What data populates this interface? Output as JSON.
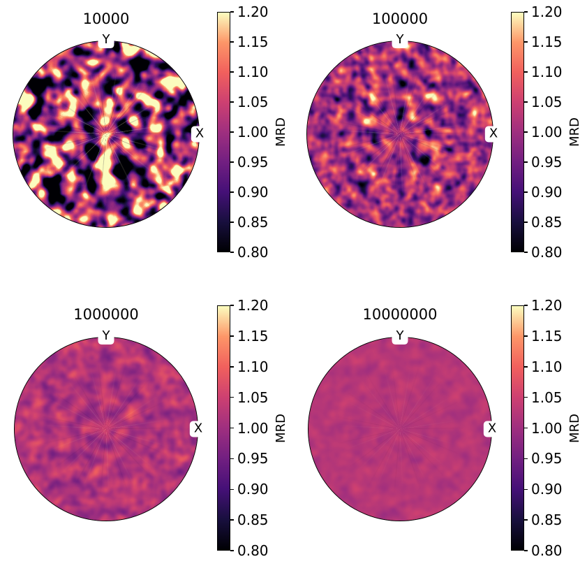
{
  "figure": {
    "background": "#ffffff",
    "colormap": "magma",
    "axis_labels": {
      "top": "Y",
      "right": "X"
    },
    "colorbar": {
      "label": "MRD",
      "vmin": "0.80",
      "vmax": "1.20",
      "ticks": [
        "1.20",
        "1.15",
        "1.10",
        "1.05",
        "1.00",
        "0.95",
        "0.90",
        "0.85",
        "0.80"
      ],
      "gradient_stops": [
        "#000004",
        "#180f3e",
        "#451077",
        "#721f81",
        "#9f2f7f",
        "#cd4071",
        "#f1605d",
        "#fd9668",
        "#fcfdbf"
      ]
    }
  },
  "subplots": [
    {
      "title": "10000"
    },
    {
      "title": "100000"
    },
    {
      "title": "1000000"
    },
    {
      "title": "10000000"
    }
  ],
  "chart_data": [
    {
      "type": "heatmap",
      "subtype": "pole-figure",
      "projection": "polar",
      "title": "10000",
      "n_orientations": 10000,
      "value_label": "MRD",
      "value_range": [
        0.8,
        1.2
      ],
      "colormap": "magma",
      "colorbar_ticks": [
        1.2,
        1.15,
        1.1,
        1.05,
        1.0,
        0.95,
        0.9,
        0.85,
        0.8
      ],
      "axis_labels": {
        "top": "Y",
        "right": "X"
      },
      "observed_mrd_range_approx": [
        0.8,
        1.2
      ],
      "appearance": "high-contrast speckled intensity field; many patches saturate at both colour-scale limits (black <=0.80 and cream >=1.20); thin radial spokes emanate from the centre"
    },
    {
      "type": "heatmap",
      "subtype": "pole-figure",
      "projection": "polar",
      "title": "100000",
      "n_orientations": 100000,
      "value_label": "MRD",
      "value_range": [
        0.8,
        1.2
      ],
      "colormap": "magma",
      "colorbar_ticks": [
        1.2,
        1.15,
        1.1,
        1.05,
        1.0,
        0.95,
        0.9,
        0.85,
        0.8
      ],
      "axis_labels": {
        "top": "Y",
        "right": "X"
      },
      "observed_mrd_range_approx": [
        0.85,
        1.17
      ],
      "appearance": "moderate mottled texture around MRD ~1 with scattered bright (orange/cream) and dark (navy) patches; faint radial spokes at centre"
    },
    {
      "type": "heatmap",
      "subtype": "pole-figure",
      "projection": "polar",
      "title": "1000000",
      "n_orientations": 1000000,
      "value_label": "MRD",
      "value_range": [
        0.8,
        1.2
      ],
      "colormap": "magma",
      "colorbar_ticks": [
        1.2,
        1.15,
        1.1,
        1.05,
        1.0,
        0.95,
        0.9,
        0.85,
        0.8
      ],
      "axis_labels": {
        "top": "Y",
        "right": "X"
      },
      "observed_mrd_range_approx": [
        0.93,
        1.08
      ],
      "appearance": "weak mottling; mostly uniform pink-magenta near MRD ~1 with subtle lighter/darker patches"
    },
    {
      "type": "heatmap",
      "subtype": "pole-figure",
      "projection": "polar",
      "title": "10000000",
      "n_orientations": 10000000,
      "value_label": "MRD",
      "value_range": [
        0.8,
        1.2
      ],
      "colormap": "magma",
      "colorbar_ticks": [
        1.2,
        1.15,
        1.1,
        1.05,
        1.0,
        0.95,
        0.9,
        0.85,
        0.8
      ],
      "axis_labels": {
        "top": "Y",
        "right": "X"
      },
      "observed_mrd_range_approx": [
        0.97,
        1.04
      ],
      "appearance": "nearly uniform pink-magenta disc at MRD ~1; only very faint texture and centre spokes remain"
    }
  ]
}
